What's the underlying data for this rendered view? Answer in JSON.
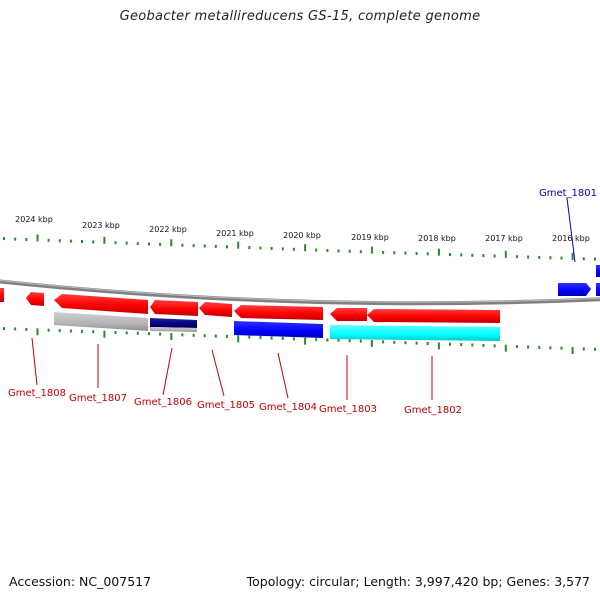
{
  "title": "Geobacter metallireducens GS-15, complete genome",
  "footer": {
    "accession": "Accession: NC_007517",
    "summary": "Topology: circular; Length: 3,997,420 bp; Genes: 3,577"
  },
  "colors": {
    "red": "#ff0000",
    "blue": "#0000ff",
    "cyan": "#00ffff",
    "navy": "#000080",
    "gray": "#b4b4b4",
    "tick": "#2a8a2a",
    "backbone": "#808080"
  },
  "ruler_labels": [
    "2024 kbp",
    "2023 kbp",
    "2022 kbp",
    "2021 kbp",
    "2020 kbp",
    "2019 kbp",
    "2018 kbp",
    "2017 kbp",
    "2016 kbp"
  ],
  "gene_labels": [
    "Gmet_1801",
    "Gmet_1802",
    "Gmet_1803",
    "Gmet_1804",
    "Gmet_1805",
    "Gmet_1806",
    "Gmet_1807",
    "Gmet_1808"
  ]
}
